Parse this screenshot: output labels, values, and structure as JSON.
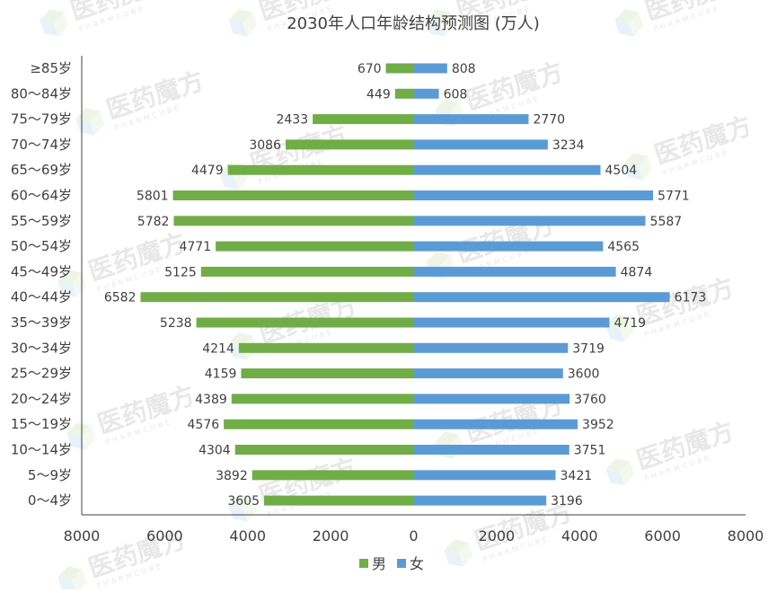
{
  "chart_data": {
    "type": "bar",
    "orientation": "horizontal",
    "layout": "population-pyramid",
    "title": "2030年人口年龄结构预测图 (万人)",
    "categories": [
      "≥85岁",
      "80～84岁",
      "75～79岁",
      "70～74岁",
      "65～69岁",
      "60～64岁",
      "55～59岁",
      "50～54岁",
      "45～49岁",
      "40～44岁",
      "35～39岁",
      "30～34岁",
      "25～29岁",
      "20～24岁",
      "15～19岁",
      "10～14岁",
      "5～9岁",
      "0～4岁"
    ],
    "series": [
      {
        "name": "男",
        "color": "#70ad47",
        "side": "left",
        "values": [
          670,
          449,
          2433,
          3086,
          4479,
          5801,
          5782,
          4771,
          5125,
          6582,
          5238,
          4214,
          4159,
          4389,
          4576,
          4304,
          3892,
          3605
        ]
      },
      {
        "name": "女",
        "color": "#5b9bd5",
        "side": "right",
        "values": [
          808,
          608,
          2770,
          3234,
          4504,
          5771,
          5587,
          4565,
          4874,
          6173,
          4719,
          3719,
          3600,
          3760,
          3952,
          3751,
          3421,
          3196
        ]
      }
    ],
    "xlim": [
      -8000,
      8000
    ],
    "xticks": [
      -8000,
      -6000,
      -4000,
      -2000,
      0,
      2000,
      4000,
      6000,
      8000
    ],
    "xtick_labels": [
      "8000",
      "6000",
      "4000",
      "2000",
      "0",
      "2000",
      "4000",
      "6000",
      "8000"
    ],
    "xlabel": "",
    "ylabel": "",
    "grid": false,
    "legend": {
      "position": "bottom",
      "entries": [
        "男",
        "女"
      ]
    }
  },
  "watermark": {
    "text": "医药魔方",
    "subtext": "PHARMCUBE",
    "icon": "cube-logo-icon"
  }
}
